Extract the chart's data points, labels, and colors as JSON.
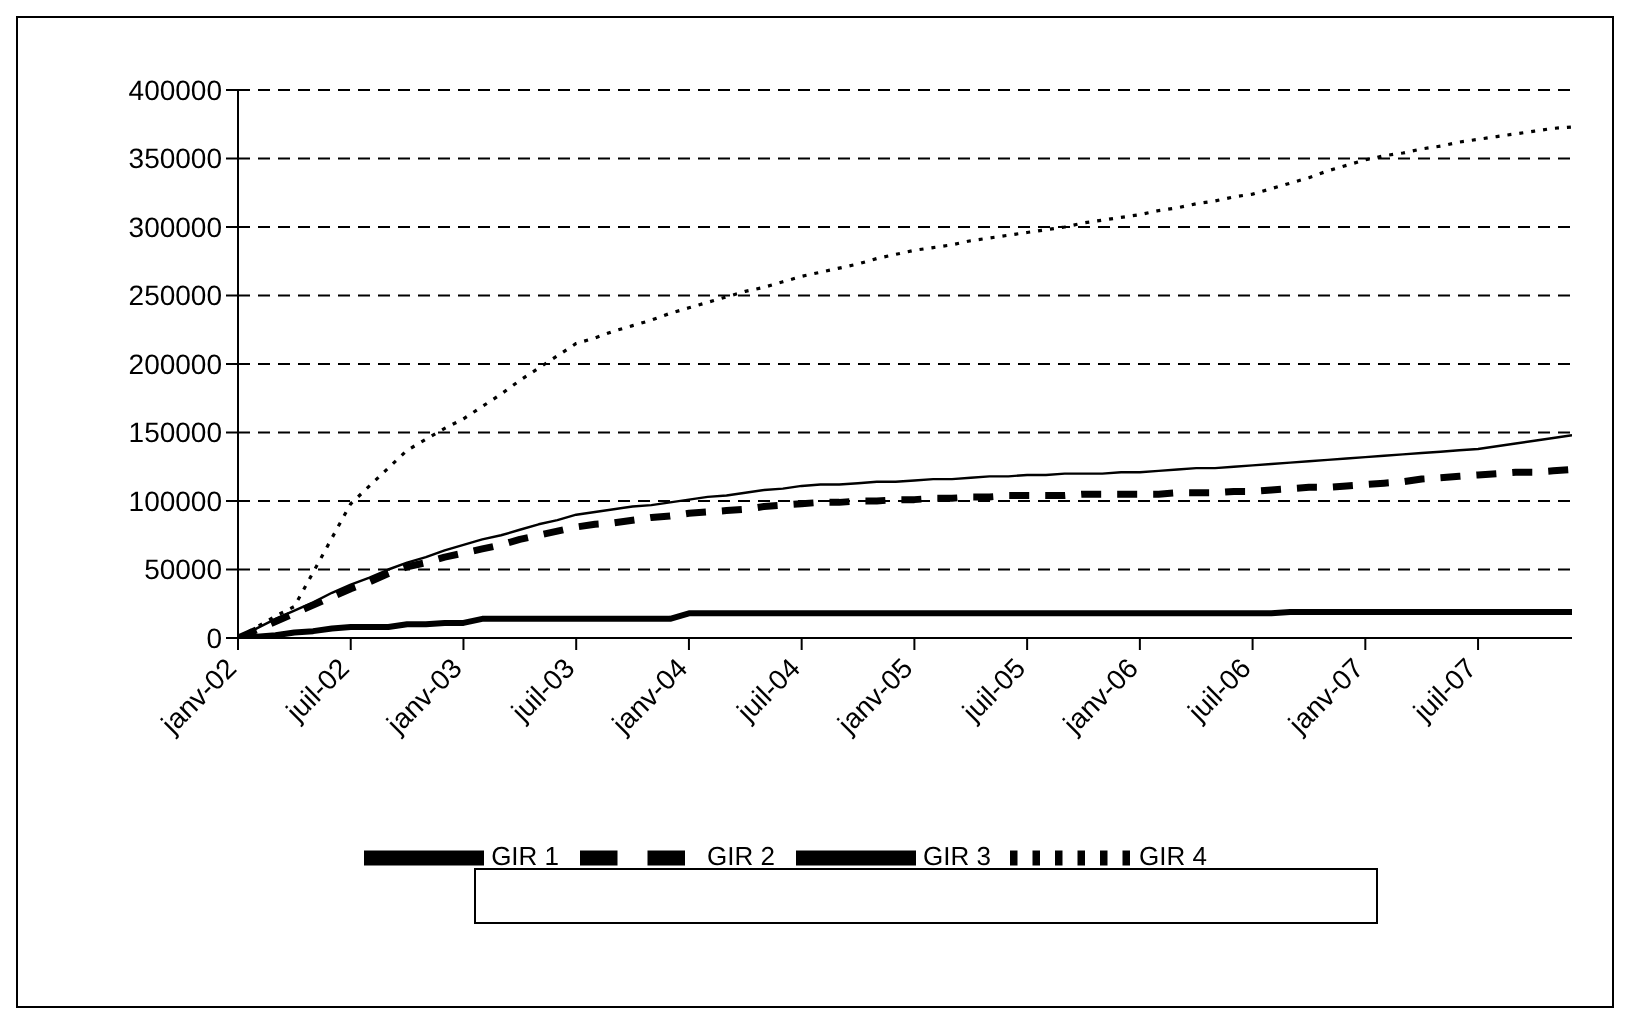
{
  "chart_data": {
    "type": "line",
    "categories": [
      "janv-02",
      null,
      null,
      null,
      null,
      null,
      "juil-02",
      null,
      null,
      null,
      null,
      null,
      "janv-03",
      null,
      null,
      null,
      null,
      null,
      "juil-03",
      null,
      null,
      null,
      null,
      null,
      "janv-04",
      null,
      null,
      null,
      null,
      null,
      "juil-04",
      null,
      null,
      null,
      null,
      null,
      "janv-05",
      null,
      null,
      null,
      null,
      null,
      "juil-05",
      null,
      null,
      null,
      null,
      null,
      "janv-06",
      null,
      null,
      null,
      null,
      null,
      "juil-06",
      null,
      null,
      null,
      null,
      null,
      "janv-07",
      null,
      null,
      null,
      null,
      null,
      "juil-07",
      null,
      null,
      null,
      null,
      null
    ],
    "series": [
      {
        "name": "GIR 1",
        "color": "#000000",
        "line_style": "solid",
        "values": [
          0,
          1000,
          2000,
          4000,
          5000,
          7000,
          8000,
          8000,
          8000,
          10000,
          10000,
          11000,
          11000,
          14000,
          14000,
          14000,
          14000,
          14000,
          14000,
          14000,
          14000,
          14000,
          14000,
          14000,
          18000,
          18000,
          18000,
          18000,
          18000,
          18000,
          18000,
          18000,
          18000,
          18000,
          18000,
          18000,
          18000,
          18000,
          18000,
          18000,
          18000,
          18000,
          18000,
          18000,
          18000,
          18000,
          18000,
          18000,
          18000,
          18000,
          18000,
          18000,
          18000,
          18000,
          18000,
          18000,
          19000,
          19000,
          19000,
          19000,
          19000,
          19000,
          19000,
          19000,
          19000,
          19000,
          19000,
          19000,
          19000,
          19000,
          19000,
          19000
        ]
      },
      {
        "name": "GIR 2",
        "color": "#000000",
        "line_style": "dashed",
        "values": [
          0,
          6000,
          12000,
          18000,
          24000,
          30000,
          36000,
          41000,
          47000,
          52000,
          55000,
          59000,
          62000,
          65000,
          68000,
          72000,
          75000,
          78000,
          81000,
          83000,
          84000,
          86000,
          88000,
          89000,
          91000,
          92000,
          93000,
          94000,
          96000,
          97000,
          98000,
          99000,
          99000,
          100000,
          100000,
          101000,
          101000,
          102000,
          102000,
          103000,
          103000,
          104000,
          104000,
          104000,
          104000,
          105000,
          105000,
          105000,
          105000,
          105000,
          106000,
          106000,
          106000,
          107000,
          107000,
          108000,
          109000,
          110000,
          110000,
          111000,
          112000,
          113000,
          114000,
          116000,
          117000,
          118000,
          119000,
          120000,
          121000,
          121000,
          122000,
          123000
        ]
      },
      {
        "name": "GIR 3",
        "color": "#000000",
        "line_style": "solid",
        "values": [
          0,
          7000,
          14000,
          20000,
          26000,
          33000,
          39000,
          44000,
          50000,
          55000,
          59000,
          64000,
          68000,
          72000,
          75000,
          79000,
          83000,
          86000,
          90000,
          92000,
          94000,
          96000,
          97000,
          99000,
          101000,
          103000,
          104000,
          106000,
          108000,
          109000,
          111000,
          112000,
          112000,
          113000,
          114000,
          114000,
          115000,
          116000,
          116000,
          117000,
          118000,
          118000,
          119000,
          119000,
          120000,
          120000,
          120000,
          121000,
          121000,
          122000,
          123000,
          124000,
          124000,
          125000,
          126000,
          127000,
          128000,
          129000,
          130000,
          131000,
          132000,
          133000,
          134000,
          135000,
          136000,
          137000,
          138000,
          140000,
          142000,
          144000,
          146000,
          148000
        ]
      },
      {
        "name": "GIR 4",
        "color": "#000000",
        "line_style": "dotted",
        "values": [
          0,
          8000,
          16000,
          23000,
          48000,
          73000,
          98000,
          111000,
          124000,
          137000,
          145000,
          153000,
          160000,
          169000,
          178000,
          188000,
          197000,
          206000,
          215000,
          219000,
          224000,
          228000,
          232000,
          237000,
          241000,
          245000,
          249000,
          253000,
          256000,
          260000,
          264000,
          267000,
          270000,
          273000,
          277000,
          280000,
          283000,
          285000,
          287000,
          290000,
          292000,
          294000,
          296000,
          298000,
          300000,
          303000,
          305000,
          307000,
          309000,
          312000,
          314000,
          317000,
          319000,
          322000,
          324000,
          328000,
          332000,
          336000,
          341000,
          345000,
          349000,
          352000,
          354000,
          357000,
          359000,
          362000,
          364000,
          366000,
          368000,
          370000,
          372000,
          373000
        ]
      }
    ],
    "ylim": [
      0,
      400000
    ],
    "yticks": [
      0,
      50000,
      100000,
      150000,
      200000,
      250000,
      300000,
      350000,
      400000
    ],
    "grid": "y",
    "legend": "bottom"
  }
}
